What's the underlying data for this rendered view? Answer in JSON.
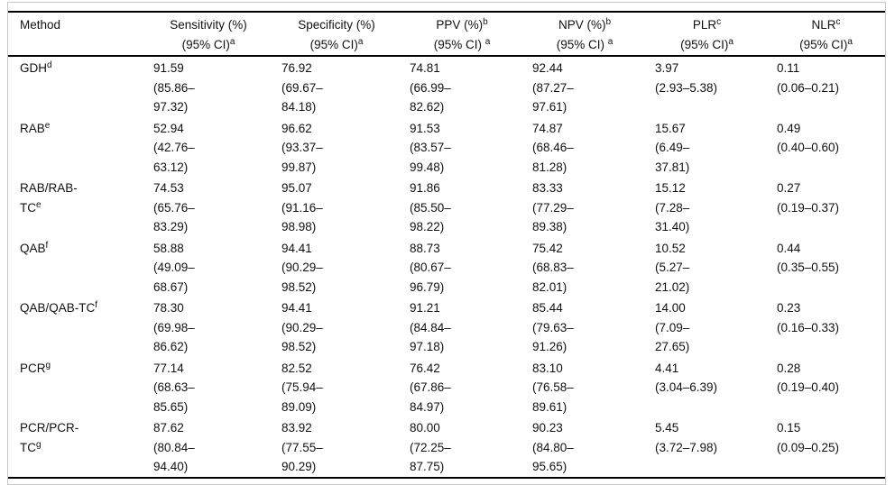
{
  "table": {
    "description": "Diagnostic performance table with 95% confidence intervals",
    "sup_marker_note": "A caret ^x in any string marks the single following character as a superscript footnote letter",
    "columns": [
      {
        "key": "method",
        "header_lines": [
          "Method"
        ]
      },
      {
        "key": "sensitivity",
        "header_lines": [
          "Sensitivity (%)",
          "(95% CI)^a"
        ]
      },
      {
        "key": "specificity",
        "header_lines": [
          "Specificity (%)",
          "(95% CI)^a"
        ]
      },
      {
        "key": "ppv",
        "header_lines": [
          "PPV (%)^b",
          "(95% CI) ^a"
        ]
      },
      {
        "key": "npv",
        "header_lines": [
          "NPV (%)^b",
          "(95% CI) ^a"
        ]
      },
      {
        "key": "plr",
        "header_lines": [
          "PLR^c",
          "(95% CI)^a"
        ]
      },
      {
        "key": "nlr",
        "header_lines": [
          "NLR^c",
          "(95% CI)^a"
        ]
      }
    ],
    "rows": [
      {
        "method": [
          "GDH^d"
        ],
        "sensitivity": [
          "91.59",
          "(85.86–",
          "97.32)"
        ],
        "specificity": [
          "76.92",
          "(69.67–",
          "84.18)"
        ],
        "ppv": [
          "74.81",
          "(66.99–",
          "82.62)"
        ],
        "npv": [
          "92.44",
          "(87.27–",
          "97.61)"
        ],
        "plr": [
          "3.97",
          "(2.93–5.38)"
        ],
        "nlr": [
          "0.11",
          "(0.06–0.21)"
        ]
      },
      {
        "method": [
          "RAB^e"
        ],
        "sensitivity": [
          "52.94",
          "(42.76–",
          "63.12)"
        ],
        "specificity": [
          "96.62",
          "(93.37–",
          "99.87)"
        ],
        "ppv": [
          "91.53",
          "(83.57–",
          "99.48)"
        ],
        "npv": [
          "74.87",
          "(68.46–",
          "81.28)"
        ],
        "plr": [
          "15.67",
          "(6.49–",
          "37.81)"
        ],
        "nlr": [
          "0.49",
          "(0.40–0.60)"
        ]
      },
      {
        "method": [
          "RAB/RAB-",
          "TC^e"
        ],
        "sensitivity": [
          "74.53",
          "(65.76–",
          "83.29)"
        ],
        "specificity": [
          "95.07",
          "(91.16–",
          "98.98)"
        ],
        "ppv": [
          "91.86",
          "(85.50–",
          "98.22)"
        ],
        "npv": [
          "83.33",
          "(77.29–",
          "89.38)"
        ],
        "plr": [
          "15.12",
          "(7.28–",
          "31.40)"
        ],
        "nlr": [
          "0.27",
          "(0.19–0.37)"
        ]
      },
      {
        "method": [
          "QAB^f"
        ],
        "sensitivity": [
          "58.88",
          "(49.09–",
          "68.67)"
        ],
        "specificity": [
          "94.41",
          "(90.29–",
          "98.52)"
        ],
        "ppv": [
          "88.73",
          "(80.67–",
          "96.79)"
        ],
        "npv": [
          "75.42",
          "(68.83–",
          "82.01)"
        ],
        "plr": [
          "10.52",
          "(5.27–",
          "21.02)"
        ],
        "nlr": [
          "0.44",
          "(0.35–0.55)"
        ]
      },
      {
        "method": [
          "QAB/QAB-TC^f"
        ],
        "sensitivity": [
          "78.30",
          "(69.98–",
          "86.62)"
        ],
        "specificity": [
          "94.41",
          "(90.29–",
          "98.52)"
        ],
        "ppv": [
          "91.21",
          "(84.84–",
          "97.18)"
        ],
        "npv": [
          "85.44",
          "(79.63–",
          "91.26)"
        ],
        "plr": [
          "14.00",
          "(7.09–",
          "27.65)"
        ],
        "nlr": [
          "0.23",
          "(0.16–0.33)"
        ]
      },
      {
        "method": [
          "PCR^g"
        ],
        "sensitivity": [
          "77.14",
          "(68.63–",
          "85.65)"
        ],
        "specificity": [
          "82.52",
          "(75.94–",
          "89.09)"
        ],
        "ppv": [
          "76.42",
          "(67.86–",
          "84.97)"
        ],
        "npv": [
          "83.10",
          "(76.58–",
          "89.61)"
        ],
        "plr": [
          "4.41",
          "(3.04–6.39)"
        ],
        "nlr": [
          "0.28",
          "(0.19–0.40)"
        ]
      },
      {
        "method": [
          "PCR/PCR-",
          "TC^g"
        ],
        "sensitivity": [
          "87.62",
          "(80.84–",
          "94.40)"
        ],
        "specificity": [
          "83.92",
          "(77.55–",
          "90.29)"
        ],
        "ppv": [
          "80.00",
          "(72.25–",
          "87.75)"
        ],
        "npv": [
          "90.23",
          "(84.80–",
          "95.65)"
        ],
        "plr": [
          "5.45",
          "(3.72–7.98)"
        ],
        "nlr": [
          "0.15",
          "(0.09–0.25)"
        ]
      }
    ],
    "colors": {
      "text": "#111111",
      "rule": "#000000",
      "frame_border": "#c6c6c6",
      "background": "#ffffff"
    }
  }
}
